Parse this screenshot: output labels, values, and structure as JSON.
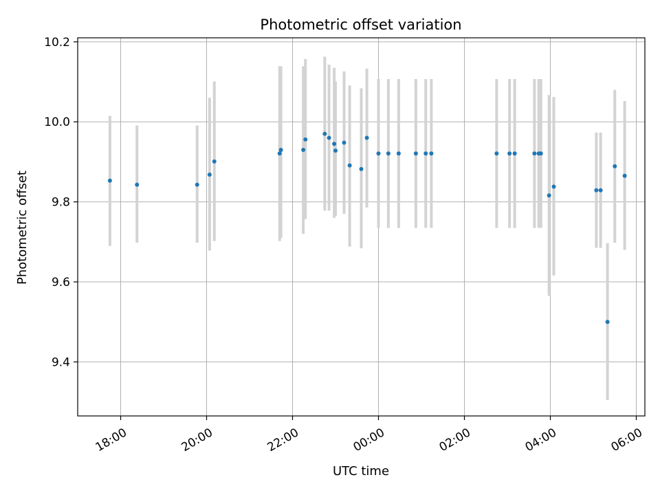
{
  "chart_data": {
    "type": "scatter",
    "title": "Photometric offset variation",
    "xlabel": "UTC time",
    "ylabel": "Photometric offset",
    "x_unit": "UTC time (hours, 24.0 = 00:00 next day)",
    "xlim": [
      17.0,
      30.2
    ],
    "ylim": [
      9.265,
      10.21
    ],
    "grid": true,
    "legend": false,
    "xticks": [
      {
        "value": 18.0,
        "label": "18:00"
      },
      {
        "value": 20.0,
        "label": "20:00"
      },
      {
        "value": 22.0,
        "label": "22:00"
      },
      {
        "value": 24.0,
        "label": "00:00"
      },
      {
        "value": 26.0,
        "label": "02:00"
      },
      {
        "value": 28.0,
        "label": "04:00"
      },
      {
        "value": 30.0,
        "label": "06:00"
      }
    ],
    "yticks": [
      {
        "value": 9.4,
        "label": "9.4"
      },
      {
        "value": 9.6,
        "label": "9.6"
      },
      {
        "value": 9.8,
        "label": "9.8"
      },
      {
        "value": 10.0,
        "label": "10.0"
      },
      {
        "value": 10.2,
        "label": "10.2"
      }
    ],
    "colors": {
      "point": "#1f77b4",
      "errorbar": "#d3d3d3",
      "grid": "#b0b0b0"
    },
    "points": [
      {
        "x": 17.75,
        "y": 9.853,
        "low": 9.69,
        "high": 10.015
      },
      {
        "x": 18.38,
        "y": 9.843,
        "low": 9.698,
        "high": 9.991
      },
      {
        "x": 19.78,
        "y": 9.843,
        "low": 9.698,
        "high": 9.991
      },
      {
        "x": 20.07,
        "y": 9.868,
        "low": 9.678,
        "high": 10.06
      },
      {
        "x": 20.18,
        "y": 9.901,
        "low": 9.702,
        "high": 10.101
      },
      {
        "x": 21.7,
        "y": 9.921,
        "low": 9.702,
        "high": 10.139
      },
      {
        "x": 21.73,
        "y": 9.93,
        "low": 9.71,
        "high": 10.139
      },
      {
        "x": 22.25,
        "y": 9.93,
        "low": 9.72,
        "high": 10.139
      },
      {
        "x": 22.3,
        "y": 9.956,
        "low": 9.757,
        "high": 10.157
      },
      {
        "x": 22.75,
        "y": 9.97,
        "low": 9.778,
        "high": 10.163
      },
      {
        "x": 22.85,
        "y": 9.96,
        "low": 9.778,
        "high": 10.143
      },
      {
        "x": 22.97,
        "y": 9.945,
        "low": 9.76,
        "high": 10.135
      },
      {
        "x": 23.0,
        "y": 9.928,
        "low": 9.765,
        "high": 10.101
      },
      {
        "x": 23.2,
        "y": 9.948,
        "low": 9.77,
        "high": 10.126
      },
      {
        "x": 23.33,
        "y": 9.891,
        "low": 9.688,
        "high": 10.091
      },
      {
        "x": 23.6,
        "y": 9.882,
        "low": 9.684,
        "high": 10.084
      },
      {
        "x": 23.73,
        "y": 9.96,
        "low": 9.786,
        "high": 10.133
      },
      {
        "x": 24.0,
        "y": 9.921,
        "low": 9.735,
        "high": 10.107
      },
      {
        "x": 24.23,
        "y": 9.921,
        "low": 9.735,
        "high": 10.107
      },
      {
        "x": 24.47,
        "y": 9.921,
        "low": 9.735,
        "high": 10.107
      },
      {
        "x": 24.87,
        "y": 9.921,
        "low": 9.735,
        "high": 10.107
      },
      {
        "x": 25.1,
        "y": 9.921,
        "low": 9.735,
        "high": 10.107
      },
      {
        "x": 25.23,
        "y": 9.921,
        "low": 9.735,
        "high": 10.107
      },
      {
        "x": 26.75,
        "y": 9.921,
        "low": 9.735,
        "high": 10.107
      },
      {
        "x": 27.05,
        "y": 9.921,
        "low": 9.735,
        "high": 10.107
      },
      {
        "x": 27.17,
        "y": 9.921,
        "low": 9.735,
        "high": 10.107
      },
      {
        "x": 27.63,
        "y": 9.921,
        "low": 9.735,
        "high": 10.107
      },
      {
        "x": 27.73,
        "y": 9.921,
        "low": 9.735,
        "high": 10.107
      },
      {
        "x": 27.78,
        "y": 9.921,
        "low": 9.735,
        "high": 10.107
      },
      {
        "x": 27.97,
        "y": 9.816,
        "low": 9.565,
        "high": 10.067
      },
      {
        "x": 28.08,
        "y": 9.838,
        "low": 9.616,
        "high": 10.062
      },
      {
        "x": 29.07,
        "y": 9.829,
        "low": 9.685,
        "high": 9.973
      },
      {
        "x": 29.17,
        "y": 9.829,
        "low": 9.685,
        "high": 9.973
      },
      {
        "x": 29.33,
        "y": 9.5,
        "low": 9.305,
        "high": 9.697
      },
      {
        "x": 29.5,
        "y": 9.889,
        "low": 9.698,
        "high": 10.08
      },
      {
        "x": 29.73,
        "y": 9.865,
        "low": 9.68,
        "high": 10.052
      }
    ]
  }
}
